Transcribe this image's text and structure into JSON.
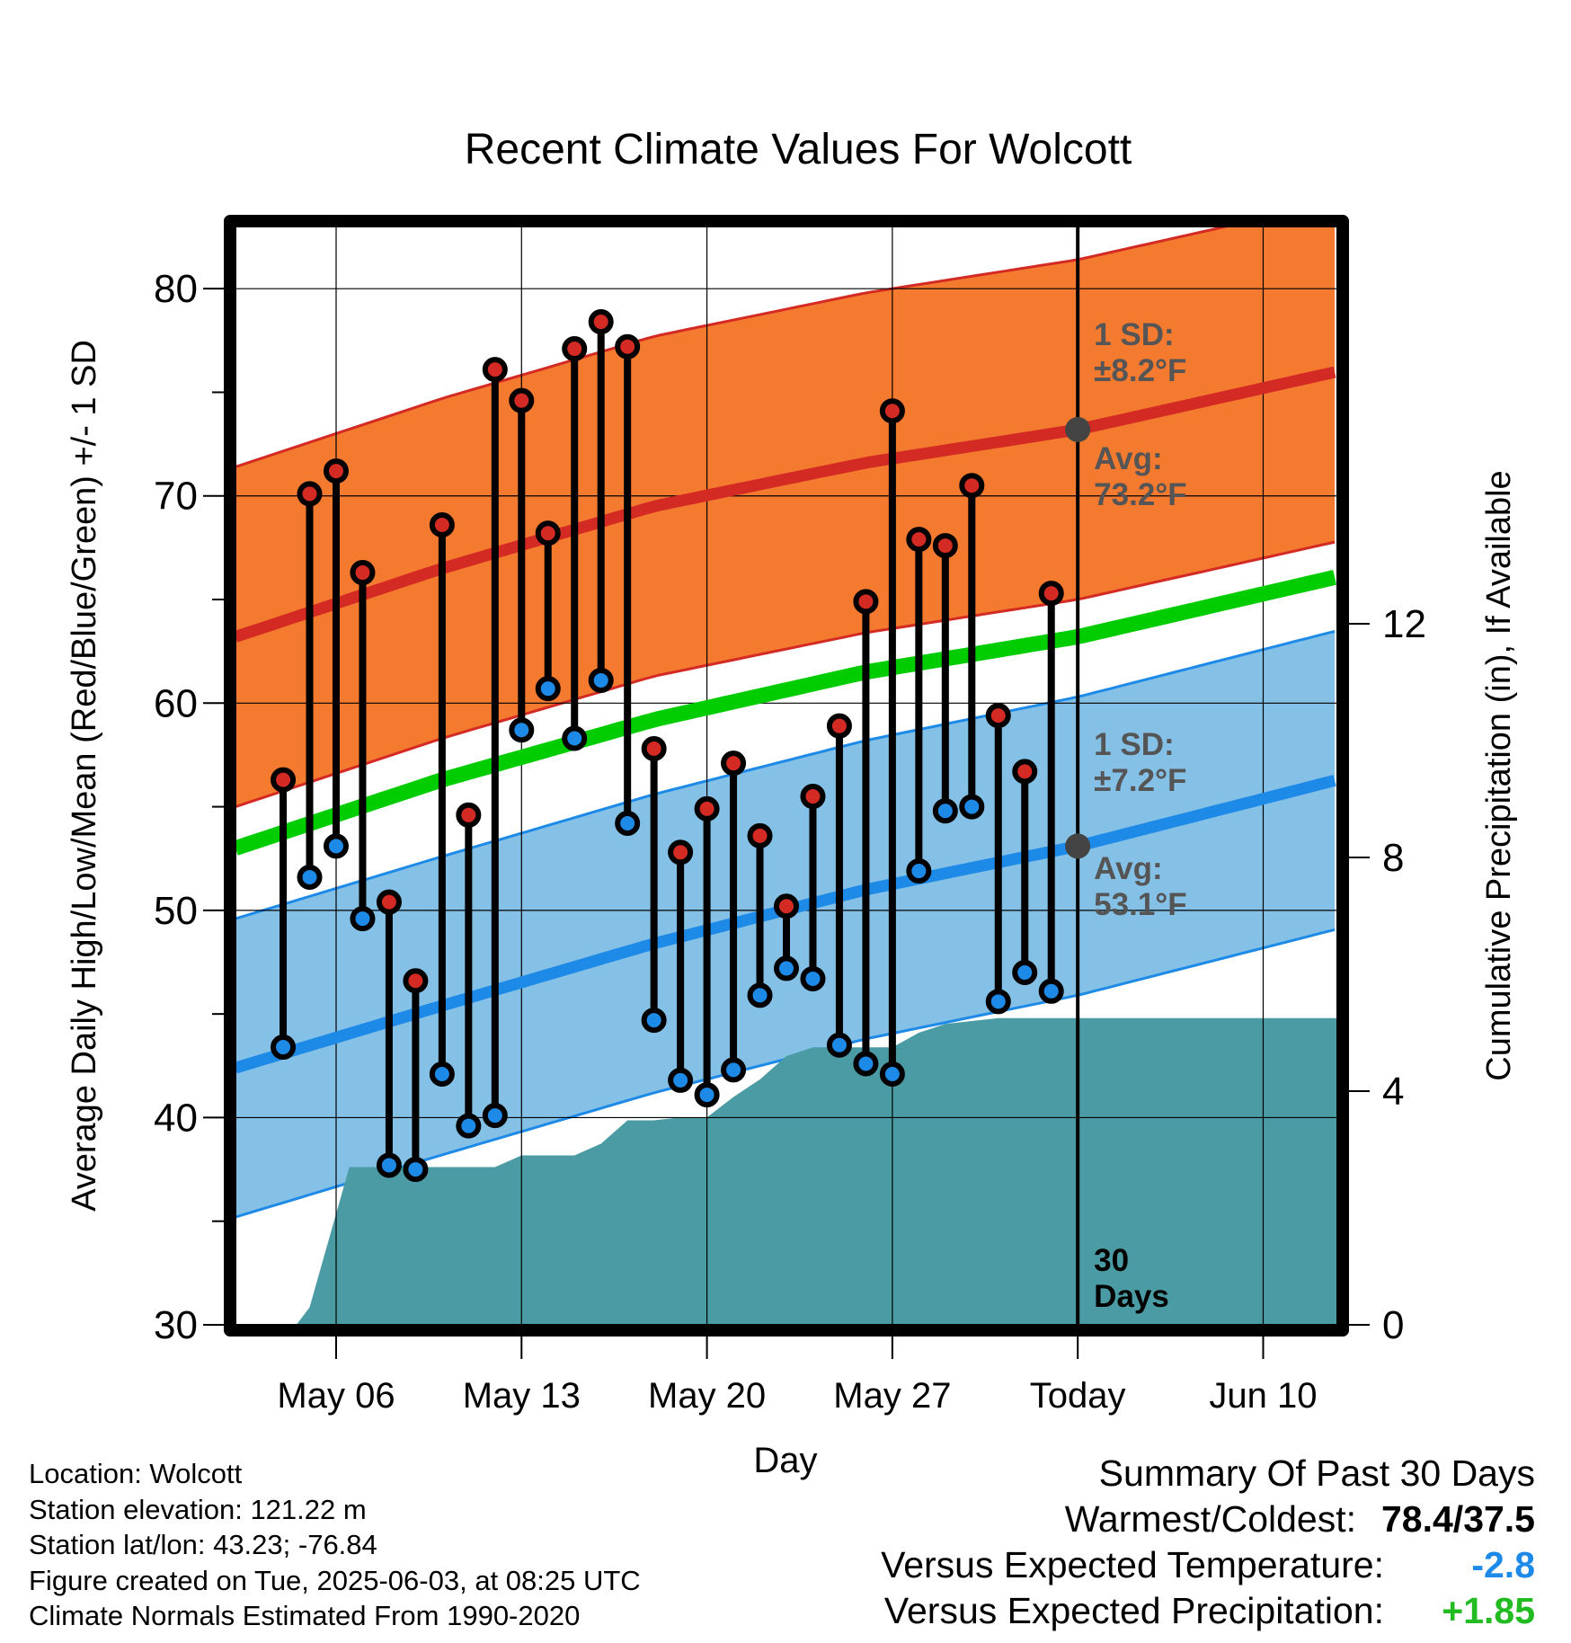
{
  "chart_data": {
    "type": "line",
    "title": "Recent Climate Values For Wolcott",
    "xlabel": "Day",
    "ylabel": "Average Daily High/Low/Mean (Red/Blue/Green) +/- 1 SD",
    "y2label": "Cumulative Precipitation (in), If Available",
    "x_tick_labels": [
      "May 06",
      "May 13",
      "May 20",
      "May 27",
      "Today",
      "Jun 10"
    ],
    "x_range_days": [
      -31.8,
      9.8
    ],
    "x_tick_days": [
      -28,
      -21,
      -14,
      -7,
      0,
      7
    ],
    "ylim": [
      30,
      83
    ],
    "y_ticks": [
      30,
      40,
      50,
      60,
      70,
      80
    ],
    "y2lim": [
      0,
      18.8
    ],
    "y2_ticks": [
      0,
      4,
      8,
      12
    ],
    "grid": true,
    "colors": {
      "high_band": "#f47a30",
      "high_edge": "#d42a24",
      "high_mean": "#d42a24",
      "low_band": "#85c1e6",
      "low_edge": "#1e8ae8",
      "low_mean": "#1e8ae8",
      "mean_line": "#00cc00",
      "precip_fill": "#4a9ba3",
      "high_dot": "#d42a24",
      "low_dot": "#1e8ae8",
      "marker": "#444444",
      "annotation": "#555555"
    },
    "normals": {
      "days": [
        -31.8,
        -24,
        -16,
        -8,
        0,
        9.8
      ],
      "high_mean": [
        63.2,
        66.5,
        69.5,
        71.6,
        73.2,
        76.0
      ],
      "high_sd": 8.2,
      "low_mean": [
        42.4,
        45.4,
        48.4,
        51.0,
        53.1,
        56.3
      ],
      "low_sd": 7.2,
      "daily_mean": [
        53.0,
        56.3,
        59.2,
        61.5,
        63.2,
        66.1
      ]
    },
    "series": [
      {
        "name": "High",
        "x": [
          -30,
          -29,
          -28,
          -27,
          -26,
          -25,
          -24,
          -23,
          -22,
          -21,
          -20,
          -19,
          -18,
          -17,
          -16,
          -15,
          -14,
          -13,
          -12,
          -11,
          -10,
          -9,
          -8,
          -7,
          -6,
          -5,
          -4,
          -3,
          -2,
          -1
        ],
        "values": [
          56.3,
          70.1,
          71.2,
          66.3,
          50.4,
          46.6,
          68.6,
          54.6,
          76.1,
          74.6,
          68.2,
          77.1,
          78.4,
          77.2,
          57.8,
          52.8,
          54.9,
          57.1,
          53.6,
          50.2,
          55.5,
          58.9,
          64.9,
          74.1,
          67.9,
          67.6,
          70.5,
          59.4,
          56.7,
          65.3
        ]
      },
      {
        "name": "Low",
        "x": [
          -30,
          -29,
          -28,
          -27,
          -26,
          -25,
          -24,
          -23,
          -22,
          -21,
          -20,
          -19,
          -18,
          -17,
          -16,
          -15,
          -14,
          -13,
          -12,
          -11,
          -10,
          -9,
          -8,
          -7,
          -6,
          -5,
          -4,
          -3,
          -2,
          -1
        ],
        "values": [
          43.4,
          51.6,
          53.1,
          49.6,
          37.7,
          37.5,
          42.1,
          39.6,
          40.1,
          58.7,
          60.7,
          58.3,
          61.1,
          54.2,
          44.7,
          41.8,
          41.1,
          42.3,
          45.9,
          47.2,
          46.7,
          43.5,
          42.6,
          42.1,
          51.9,
          54.8,
          55.0,
          45.6,
          47.0,
          46.1
        ]
      },
      {
        "name": "Cumulative Precipitation",
        "x": [
          -31.8,
          -29.5,
          -29,
          -27.5,
          -25.8,
          -24,
          -23,
          -22,
          -21,
          -20,
          -19,
          -18,
          -17,
          -16,
          -15,
          -14,
          -13,
          -12,
          -11,
          -10,
          -9,
          -8,
          -7,
          -6,
          -5,
          -4,
          -3,
          -2,
          -1,
          0,
          9.8
        ],
        "values": [
          0,
          0,
          0.3,
          2.7,
          2.7,
          2.7,
          2.7,
          2.7,
          2.9,
          2.9,
          2.9,
          3.1,
          3.5,
          3.5,
          3.55,
          3.55,
          3.9,
          4.2,
          4.6,
          4.75,
          4.75,
          4.75,
          4.75,
          5.0,
          5.15,
          5.2,
          5.25,
          5.25,
          5.25,
          5.25,
          5.25
        ]
      }
    ],
    "annotations": {
      "high_sd_line1": "1 SD:",
      "high_sd_line2": "±8.2°F",
      "high_avg_line1": "Avg:",
      "high_avg_line2": "73.2°F",
      "low_sd_line1": "1 SD:",
      "low_sd_line2": "±7.2°F",
      "low_avg_line1": "Avg:",
      "low_avg_line2": "53.1°F",
      "window_line1": "30",
      "window_line2": "Days"
    }
  },
  "info": {
    "location": "Location: Wolcott",
    "elevation": "Station elevation: 121.22 m",
    "latlon": "Station lat/lon: 43.23; -76.84",
    "created": "Figure created on Tue, 2025-06-03, at 08:25 UTC",
    "normals": "Climate Normals Estimated From 1990-2020"
  },
  "summary": {
    "title": "Summary Of Past 30 Days",
    "warmest_coldest_label": "Warmest/Coldest:",
    "warmest_coldest_value": "78.4/37.5",
    "temp_label": "Versus Expected Temperature:",
    "temp_value": "-2.8",
    "temp_color": "#1e8ae8",
    "precip_label": "Versus Expected Precipitation:",
    "precip_value": "+1.85",
    "precip_color": "#22bb22"
  }
}
